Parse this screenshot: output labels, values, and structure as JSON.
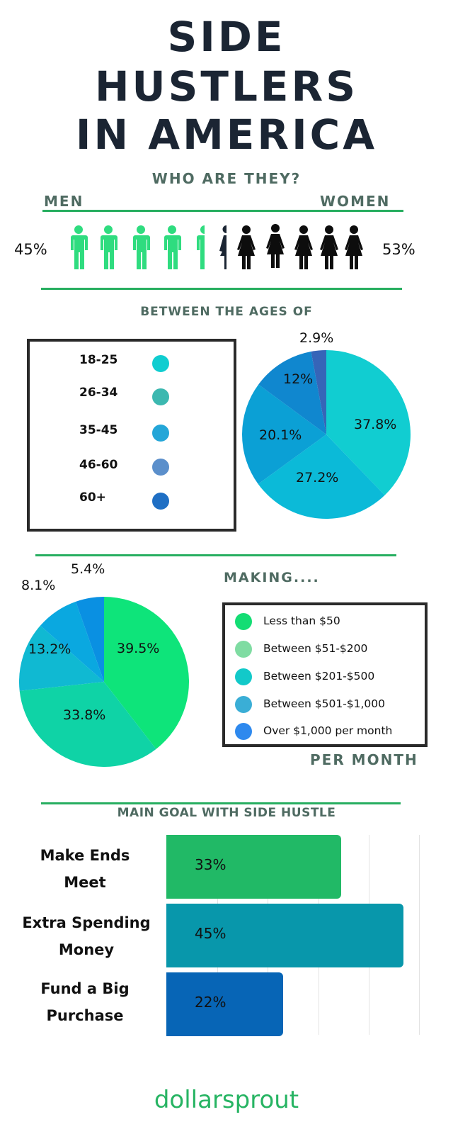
{
  "title": {
    "line1": "SIDE",
    "line2": "HUSTLERS",
    "line3": "IN AMERICA"
  },
  "gender": {
    "heading": "WHO ARE THEY?",
    "men_label": "MEN",
    "women_label": "WOMEN",
    "men_pct": "45%",
    "women_pct": "53%",
    "men_color": "#2fdc7f",
    "women_color": "#0d0d0d"
  },
  "ages": {
    "heading": "BETWEEN THE AGES OF",
    "legend": [
      {
        "label": "18-25",
        "color": "#10cdd0"
      },
      {
        "label": "26-34",
        "color": "#3cb8b0"
      },
      {
        "label": "35-45",
        "color": "#24a6d8"
      },
      {
        "label": "46-60",
        "color": "#5b8fcb"
      },
      {
        "label": "60+",
        "color": "#1f6fc4"
      }
    ],
    "slices": [
      {
        "label": "37.8%",
        "color": "#11cdd1"
      },
      {
        "label": "27.2%",
        "color": "#0bbad8"
      },
      {
        "label": "20.1%",
        "color": "#0ba0d5"
      },
      {
        "label": "12%",
        "color": "#1087cf"
      },
      {
        "label": "2.9%",
        "color": "#3665b8"
      }
    ]
  },
  "income": {
    "heading": "MAKING....",
    "footer": "PER MONTH",
    "legend": [
      {
        "label": "Less than $50",
        "color": "#14dd74"
      },
      {
        "label": "Between $51-$200",
        "color": "#7fdca2"
      },
      {
        "label": "Between $201-$500",
        "color": "#12c9c9"
      },
      {
        "label": "Between $501-$1,000",
        "color": "#3aaed6"
      },
      {
        "label": "Over $1,000 per month",
        "color": "#2e89ee"
      }
    ],
    "slices": [
      {
        "label": "39.5%",
        "color": "#0ee47a"
      },
      {
        "label": "33.8%",
        "color": "#0fd3a6"
      },
      {
        "label": "13.2%",
        "color": "#10b9d2"
      },
      {
        "label": "8.1%",
        "color": "#0aa8e0"
      },
      {
        "label": "5.4%",
        "color": "#0a90e2"
      }
    ]
  },
  "goals": {
    "heading": "MAIN GOAL WITH SIDE HUSTLE",
    "bars": [
      {
        "line1": "Make Ends",
        "line2": "Meet",
        "value": "33%",
        "color": "#21b966"
      },
      {
        "line1": "Extra Spending",
        "line2": "Money",
        "value": "45%",
        "color": "#0897ab"
      },
      {
        "line1": "Fund a Big",
        "line2": "Purchase",
        "value": "22%",
        "color": "#0765b6"
      }
    ]
  },
  "logo": {
    "text": "dollarsprout",
    "color": "#27b463"
  },
  "chart_data": [
    {
      "type": "table",
      "title": "WHO ARE THEY?",
      "categories": [
        "Men",
        "Women"
      ],
      "values": [
        45,
        53
      ],
      "unit": "%"
    },
    {
      "type": "pie",
      "title": "BETWEEN THE AGES OF",
      "categories": [
        "18-25",
        "26-34",
        "35-45",
        "46-60",
        "60+"
      ],
      "values": [
        37.8,
        27.2,
        20.1,
        12,
        2.9
      ],
      "unit": "%",
      "legend_position": "left"
    },
    {
      "type": "pie",
      "title": "MAKING.... PER MONTH",
      "categories": [
        "Less than $50",
        "Between $51-$200",
        "Between $201-$500",
        "Between $501-$1,000",
        "Over $1,000 per month"
      ],
      "values": [
        39.5,
        33.8,
        13.2,
        8.1,
        5.4
      ],
      "unit": "%",
      "legend_position": "right"
    },
    {
      "type": "bar",
      "orientation": "horizontal",
      "title": "MAIN GOAL WITH SIDE HUSTLE",
      "categories": [
        "Make Ends Meet",
        "Extra Spending Money",
        "Fund a Big Purchase"
      ],
      "values": [
        33,
        45,
        22
      ],
      "unit": "%",
      "xlim": [
        0,
        50
      ],
      "grid": true
    }
  ]
}
